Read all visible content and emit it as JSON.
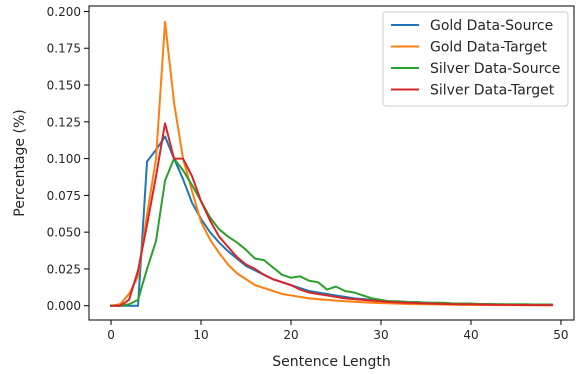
{
  "chart_data": {
    "type": "line",
    "title": "",
    "xlabel": "Sentence Length",
    "ylabel": "Percentage (%)",
    "xlim": [
      -2.45,
      51.45
    ],
    "ylim": [
      -0.0097,
      0.2037
    ],
    "xticks": [
      0,
      10,
      20,
      30,
      40,
      50
    ],
    "yticks": [
      0.0,
      0.025,
      0.05,
      0.075,
      0.1,
      0.125,
      0.15,
      0.175,
      0.2
    ],
    "xtick_labels": [
      "0",
      "10",
      "20",
      "30",
      "40",
      "50"
    ],
    "ytick_labels": [
      "0.000",
      "0.025",
      "0.050",
      "0.075",
      "0.100",
      "0.125",
      "0.150",
      "0.175",
      "0.200"
    ],
    "grid": false,
    "legend_position": "top-right",
    "x": [
      0,
      1,
      2,
      3,
      4,
      5,
      6,
      7,
      8,
      9,
      10,
      11,
      12,
      13,
      14,
      15,
      16,
      17,
      18,
      19,
      20,
      21,
      22,
      23,
      24,
      25,
      26,
      27,
      28,
      29,
      30,
      31,
      32,
      33,
      34,
      35,
      36,
      37,
      38,
      39,
      40,
      41,
      42,
      43,
      44,
      45,
      46,
      47,
      48,
      49
    ],
    "series": [
      {
        "name": "Gold Data-Source",
        "color": "#1f77b4",
        "values": [
          0.0,
          0.0,
          0.0,
          0.0,
          0.098,
          0.106,
          0.115,
          0.1,
          0.086,
          0.07,
          0.059,
          0.05,
          0.043,
          0.037,
          0.032,
          0.027,
          0.024,
          0.021,
          0.018,
          0.016,
          0.014,
          0.012,
          0.01,
          0.009,
          0.008,
          0.007,
          0.006,
          0.005,
          0.0045,
          0.004,
          0.0035,
          0.003,
          0.0028,
          0.0025,
          0.0022,
          0.002,
          0.0018,
          0.0016,
          0.0015,
          0.0013,
          0.0012,
          0.0011,
          0.001,
          0.0009,
          0.0008,
          0.0007,
          0.0006,
          0.0006,
          0.0005,
          0.0005
        ]
      },
      {
        "name": "Gold Data-Target",
        "color": "#ff7f0e",
        "values": [
          0.0,
          0.001,
          0.008,
          0.02,
          0.062,
          0.1,
          0.193,
          0.138,
          0.1,
          0.078,
          0.057,
          0.045,
          0.036,
          0.028,
          0.022,
          0.018,
          0.014,
          0.012,
          0.01,
          0.008,
          0.007,
          0.006,
          0.005,
          0.0045,
          0.004,
          0.0035,
          0.003,
          0.0027,
          0.0024,
          0.002,
          0.0018,
          0.0016,
          0.0014,
          0.0012,
          0.0011,
          0.001,
          0.0009,
          0.0008,
          0.0007,
          0.0006,
          0.0006,
          0.0005,
          0.0005,
          0.0004,
          0.0004,
          0.0004,
          0.0003,
          0.0003,
          0.0003,
          0.0003
        ]
      },
      {
        "name": "Silver Data-Source",
        "color": "#2ca02c",
        "values": [
          0.0,
          0.0,
          0.001,
          0.004,
          0.025,
          0.044,
          0.085,
          0.1,
          0.092,
          0.082,
          0.071,
          0.06,
          0.052,
          0.047,
          0.043,
          0.038,
          0.032,
          0.031,
          0.026,
          0.021,
          0.019,
          0.02,
          0.017,
          0.016,
          0.011,
          0.013,
          0.01,
          0.009,
          0.007,
          0.005,
          0.004,
          0.003,
          0.003,
          0.0025,
          0.0025,
          0.002,
          0.002,
          0.002,
          0.0015,
          0.0015,
          0.0015,
          0.0012,
          0.0012,
          0.001,
          0.001,
          0.001,
          0.001,
          0.0008,
          0.0008,
          0.0008
        ]
      },
      {
        "name": "Silver Data-Target",
        "color": "#d62728",
        "values": [
          0.0,
          0.0,
          0.004,
          0.024,
          0.055,
          0.088,
          0.124,
          0.1,
          0.1,
          0.088,
          0.071,
          0.058,
          0.047,
          0.04,
          0.033,
          0.028,
          0.025,
          0.021,
          0.018,
          0.016,
          0.014,
          0.011,
          0.009,
          0.008,
          0.007,
          0.006,
          0.005,
          0.0045,
          0.004,
          0.0035,
          0.003,
          0.0025,
          0.0022,
          0.002,
          0.0018,
          0.0016,
          0.0014,
          0.0012,
          0.0011,
          0.001,
          0.0009,
          0.0008,
          0.0007,
          0.0006,
          0.0006,
          0.0005,
          0.0005,
          0.0004,
          0.0004,
          0.0004
        ]
      }
    ]
  }
}
